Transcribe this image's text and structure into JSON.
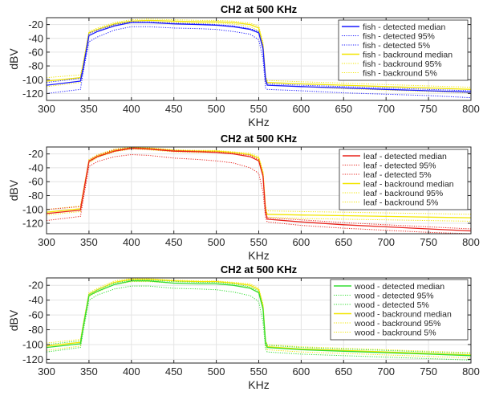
{
  "colors": {
    "fish": "#1a1aff",
    "leaf": "#e8231c",
    "wood": "#33dd33",
    "background": "#f2e600"
  },
  "chart_data": [
    {
      "type": "line",
      "title": "CH2 at 500 KHz",
      "xlabel": "KHz",
      "ylabel": "dBV",
      "xlim": [
        300,
        800
      ],
      "ylim": [
        -130,
        -10
      ],
      "xticks": [
        300,
        350,
        400,
        450,
        500,
        550,
        600,
        650,
        700,
        750,
        800
      ],
      "yticks": [
        -20,
        -40,
        -60,
        -80,
        -100,
        -120
      ],
      "grid": true,
      "legend_position": "top-right",
      "series": [
        {
          "name": "fish - detected median",
          "role": "detected",
          "stat": "median",
          "style": "solid",
          "x": [
            300,
            340,
            343,
            350,
            360,
            380,
            400,
            420,
            450,
            480,
            500,
            520,
            540,
            550,
            555,
            558,
            560,
            600,
            650,
            700,
            750,
            800
          ],
          "y": [
            -108,
            -102,
            -85,
            -36,
            -30,
            -22,
            -17,
            -17,
            -19,
            -20,
            -21,
            -23,
            -27,
            -32,
            -55,
            -100,
            -108,
            -110,
            -112,
            -114,
            -116,
            -118
          ]
        },
        {
          "name": "fish - detected 95%",
          "role": "detected",
          "stat": "p95",
          "style": "dotted",
          "x": [
            300,
            340,
            343,
            350,
            360,
            380,
            400,
            420,
            450,
            480,
            500,
            520,
            540,
            550,
            555,
            558,
            560,
            600,
            650,
            700,
            750,
            800
          ],
          "y": [
            -104,
            -98,
            -82,
            -33,
            -28,
            -20,
            -16,
            -16,
            -18,
            -19,
            -20,
            -22,
            -26,
            -30,
            -52,
            -96,
            -106,
            -108,
            -110,
            -112,
            -114,
            -116
          ]
        },
        {
          "name": "fish - detected 5%",
          "role": "detected",
          "stat": "p5",
          "style": "dotted",
          "x": [
            300,
            340,
            343,
            350,
            360,
            380,
            400,
            420,
            450,
            480,
            500,
            520,
            540,
            550,
            555,
            558,
            560,
            600,
            650,
            700,
            750,
            800
          ],
          "y": [
            -120,
            -114,
            -90,
            -45,
            -38,
            -28,
            -23,
            -23,
            -25,
            -26,
            -27,
            -30,
            -34,
            -42,
            -70,
            -112,
            -114,
            -116,
            -119,
            -121,
            -123,
            -126
          ]
        },
        {
          "name": "fish - backround median",
          "role": "background",
          "stat": "median",
          "style": "solid",
          "x": [
            300,
            340,
            343,
            350,
            360,
            380,
            400,
            420,
            450,
            480,
            500,
            520,
            540,
            550,
            555,
            558,
            560,
            600,
            650,
            700,
            750,
            800
          ],
          "y": [
            -102,
            -97,
            -80,
            -32,
            -27,
            -19,
            -15,
            -14,
            -15,
            -16,
            -16,
            -17,
            -20,
            -25,
            -50,
            -98,
            -104,
            -106,
            -108,
            -110,
            -112,
            -114
          ]
        },
        {
          "name": "fish - backround 95%",
          "role": "background",
          "stat": "p95",
          "style": "dotted",
          "x": [
            300,
            340,
            343,
            350,
            360,
            380,
            400,
            420,
            450,
            480,
            500,
            520,
            540,
            550,
            555,
            558,
            560,
            600,
            650,
            700,
            750,
            800
          ],
          "y": [
            -97,
            -93,
            -76,
            -30,
            -25,
            -17,
            -13,
            -12,
            -13,
            -14,
            -14,
            -15,
            -18,
            -22,
            -46,
            -94,
            -101,
            -103,
            -105,
            -107,
            -109,
            -111
          ]
        },
        {
          "name": "fish - backround 5%",
          "role": "background",
          "stat": "p5",
          "style": "dotted",
          "x": [
            300,
            340,
            343,
            350,
            360,
            380,
            400,
            420,
            450,
            480,
            500,
            520,
            540,
            550,
            555,
            558,
            560,
            600,
            650,
            700,
            750,
            800
          ],
          "y": [
            -110,
            -104,
            -86,
            -36,
            -30,
            -21,
            -17,
            -16,
            -17,
            -18,
            -18,
            -19,
            -23,
            -29,
            -56,
            -104,
            -108,
            -110,
            -113,
            -115,
            -117,
            -119
          ]
        }
      ]
    },
    {
      "type": "line",
      "title": "CH2 at 500 KHz",
      "xlabel": "KHz",
      "ylabel": "dBV",
      "xlim": [
        300,
        800
      ],
      "ylim": [
        -135,
        -10
      ],
      "xticks": [
        300,
        350,
        400,
        450,
        500,
        550,
        600,
        650,
        700,
        750,
        800
      ],
      "yticks": [
        -20,
        -40,
        -60,
        -80,
        -100,
        -120
      ],
      "grid": true,
      "legend_position": "top-right",
      "series": [
        {
          "name": "leaf - detected median",
          "role": "detected",
          "stat": "median",
          "style": "solid",
          "x": [
            300,
            340,
            343,
            350,
            360,
            380,
            400,
            420,
            450,
            480,
            500,
            520,
            540,
            550,
            555,
            558,
            560,
            600,
            650,
            700,
            750,
            800
          ],
          "y": [
            -106,
            -101,
            -80,
            -31,
            -24,
            -16,
            -12,
            -13,
            -16,
            -17,
            -18,
            -20,
            -24,
            -30,
            -52,
            -104,
            -114,
            -118,
            -122,
            -125,
            -128,
            -131
          ]
        },
        {
          "name": "leaf - detected 95%",
          "role": "detected",
          "stat": "p95",
          "style": "dotted",
          "x": [
            300,
            340,
            343,
            350,
            360,
            380,
            400,
            420,
            450,
            480,
            500,
            520,
            540,
            550,
            555,
            558,
            560,
            600,
            650,
            700,
            750,
            800
          ],
          "y": [
            -100,
            -96,
            -76,
            -29,
            -22,
            -14,
            -11,
            -12,
            -15,
            -16,
            -17,
            -19,
            -22,
            -28,
            -50,
            -100,
            -112,
            -115,
            -119,
            -122,
            -125,
            -128
          ]
        },
        {
          "name": "leaf - detected 5%",
          "role": "detected",
          "stat": "p5",
          "style": "dotted",
          "x": [
            300,
            340,
            343,
            350,
            360,
            380,
            400,
            420,
            450,
            480,
            500,
            520,
            540,
            550,
            555,
            558,
            560,
            600,
            650,
            700,
            750,
            800
          ],
          "y": [
            -116,
            -110,
            -88,
            -38,
            -31,
            -24,
            -21,
            -22,
            -26,
            -28,
            -30,
            -33,
            -40,
            -48,
            -75,
            -112,
            -118,
            -123,
            -127,
            -130,
            -133,
            -135
          ]
        },
        {
          "name": "leaf - backround median",
          "role": "background",
          "stat": "median",
          "style": "solid",
          "x": [
            300,
            340,
            343,
            350,
            360,
            380,
            400,
            420,
            450,
            480,
            500,
            520,
            540,
            550,
            555,
            558,
            560,
            600,
            650,
            700,
            750,
            800
          ],
          "y": [
            -104,
            -99,
            -78,
            -30,
            -23,
            -15,
            -11,
            -12,
            -15,
            -16,
            -16,
            -18,
            -21,
            -26,
            -48,
            -100,
            -107,
            -108,
            -109,
            -110,
            -111,
            -112
          ]
        },
        {
          "name": "leaf - backround 95%",
          "role": "background",
          "stat": "p95",
          "style": "dotted",
          "x": [
            300,
            340,
            343,
            350,
            360,
            380,
            400,
            420,
            450,
            480,
            500,
            520,
            540,
            550,
            555,
            558,
            560,
            600,
            650,
            700,
            750,
            800
          ],
          "y": [
            -100,
            -95,
            -75,
            -28,
            -21,
            -13,
            -10,
            -11,
            -14,
            -15,
            -15,
            -17,
            -19,
            -24,
            -45,
            -96,
            -102,
            -103,
            -104,
            -105,
            -106,
            -107
          ]
        },
        {
          "name": "leaf - backround 5%",
          "role": "background",
          "stat": "p5",
          "style": "dotted",
          "x": [
            300,
            340,
            343,
            350,
            360,
            380,
            400,
            420,
            450,
            480,
            500,
            520,
            540,
            550,
            555,
            558,
            560,
            600,
            650,
            700,
            750,
            800
          ],
          "y": [
            -108,
            -103,
            -82,
            -33,
            -25,
            -17,
            -13,
            -14,
            -17,
            -18,
            -18,
            -20,
            -24,
            -29,
            -52,
            -104,
            -111,
            -113,
            -114,
            -115,
            -116,
            -117
          ]
        }
      ]
    },
    {
      "type": "line",
      "title": "CH2 at 500 KHz",
      "xlabel": "KHz",
      "ylabel": "dBV",
      "xlim": [
        300,
        800
      ],
      "ylim": [
        -125,
        -10
      ],
      "xticks": [
        300,
        350,
        400,
        450,
        500,
        550,
        600,
        650,
        700,
        750,
        800
      ],
      "yticks": [
        -20,
        -40,
        -60,
        -80,
        -100,
        -120
      ],
      "grid": true,
      "legend_position": "top-right",
      "series": [
        {
          "name": "wood - detected median",
          "role": "detected",
          "stat": "median",
          "style": "solid",
          "x": [
            300,
            340,
            343,
            350,
            360,
            380,
            400,
            420,
            450,
            480,
            500,
            520,
            540,
            550,
            555,
            558,
            560,
            600,
            650,
            700,
            750,
            800
          ],
          "y": [
            -104,
            -99,
            -78,
            -34,
            -28,
            -19,
            -14,
            -14,
            -17,
            -18,
            -18,
            -20,
            -24,
            -30,
            -52,
            -98,
            -104,
            -107,
            -109,
            -111,
            -113,
            -115
          ]
        },
        {
          "name": "wood - detected 95%",
          "role": "detected",
          "stat": "p95",
          "style": "dotted",
          "x": [
            300,
            340,
            343,
            350,
            360,
            380,
            400,
            420,
            450,
            480,
            500,
            520,
            540,
            550,
            555,
            558,
            560,
            600,
            650,
            700,
            750,
            800
          ],
          "y": [
            -100,
            -95,
            -75,
            -32,
            -26,
            -17,
            -13,
            -13,
            -15,
            -16,
            -16,
            -18,
            -22,
            -28,
            -50,
            -95,
            -101,
            -104,
            -106,
            -108,
            -110,
            -112
          ]
        },
        {
          "name": "wood - detected 5%",
          "role": "detected",
          "stat": "p5",
          "style": "dotted",
          "x": [
            300,
            340,
            343,
            350,
            360,
            380,
            400,
            420,
            450,
            480,
            500,
            520,
            540,
            550,
            555,
            558,
            560,
            600,
            650,
            700,
            750,
            800
          ],
          "y": [
            -110,
            -104,
            -84,
            -40,
            -33,
            -25,
            -21,
            -21,
            -24,
            -25,
            -26,
            -29,
            -34,
            -42,
            -70,
            -106,
            -110,
            -113,
            -115,
            -117,
            -119,
            -121
          ]
        },
        {
          "name": "wood - backround median",
          "role": "background",
          "stat": "median",
          "style": "solid",
          "x": [
            300,
            340,
            343,
            350,
            360,
            380,
            400,
            420,
            450,
            480,
            500,
            520,
            540,
            550,
            555,
            558,
            560,
            600,
            650,
            700,
            750,
            800
          ],
          "y": [
            -102,
            -97,
            -76,
            -32,
            -26,
            -16,
            -12,
            -12,
            -14,
            -15,
            -15,
            -17,
            -20,
            -26,
            -48,
            -97,
            -103,
            -106,
            -108,
            -110,
            -112,
            -114
          ]
        },
        {
          "name": "wood - backround 95%",
          "role": "background",
          "stat": "p95",
          "style": "dotted",
          "x": [
            300,
            340,
            343,
            350,
            360,
            380,
            400,
            420,
            450,
            480,
            500,
            520,
            540,
            550,
            555,
            558,
            560,
            600,
            650,
            700,
            750,
            800
          ],
          "y": [
            -98,
            -93,
            -73,
            -30,
            -24,
            -14,
            -11,
            -11,
            -13,
            -14,
            -14,
            -16,
            -18,
            -24,
            -45,
            -94,
            -100,
            -103,
            -105,
            -107,
            -109,
            -111
          ]
        },
        {
          "name": "wood - backround 5%",
          "role": "background",
          "stat": "p5",
          "style": "dotted",
          "x": [
            300,
            340,
            343,
            350,
            360,
            380,
            400,
            420,
            450,
            480,
            500,
            520,
            540,
            550,
            555,
            558,
            560,
            600,
            650,
            700,
            750,
            800
          ],
          "y": [
            -108,
            -102,
            -80,
            -35,
            -29,
            -19,
            -15,
            -15,
            -17,
            -18,
            -18,
            -20,
            -23,
            -30,
            -53,
            -102,
            -107,
            -110,
            -112,
            -114,
            -116,
            -118
          ]
        }
      ]
    }
  ]
}
